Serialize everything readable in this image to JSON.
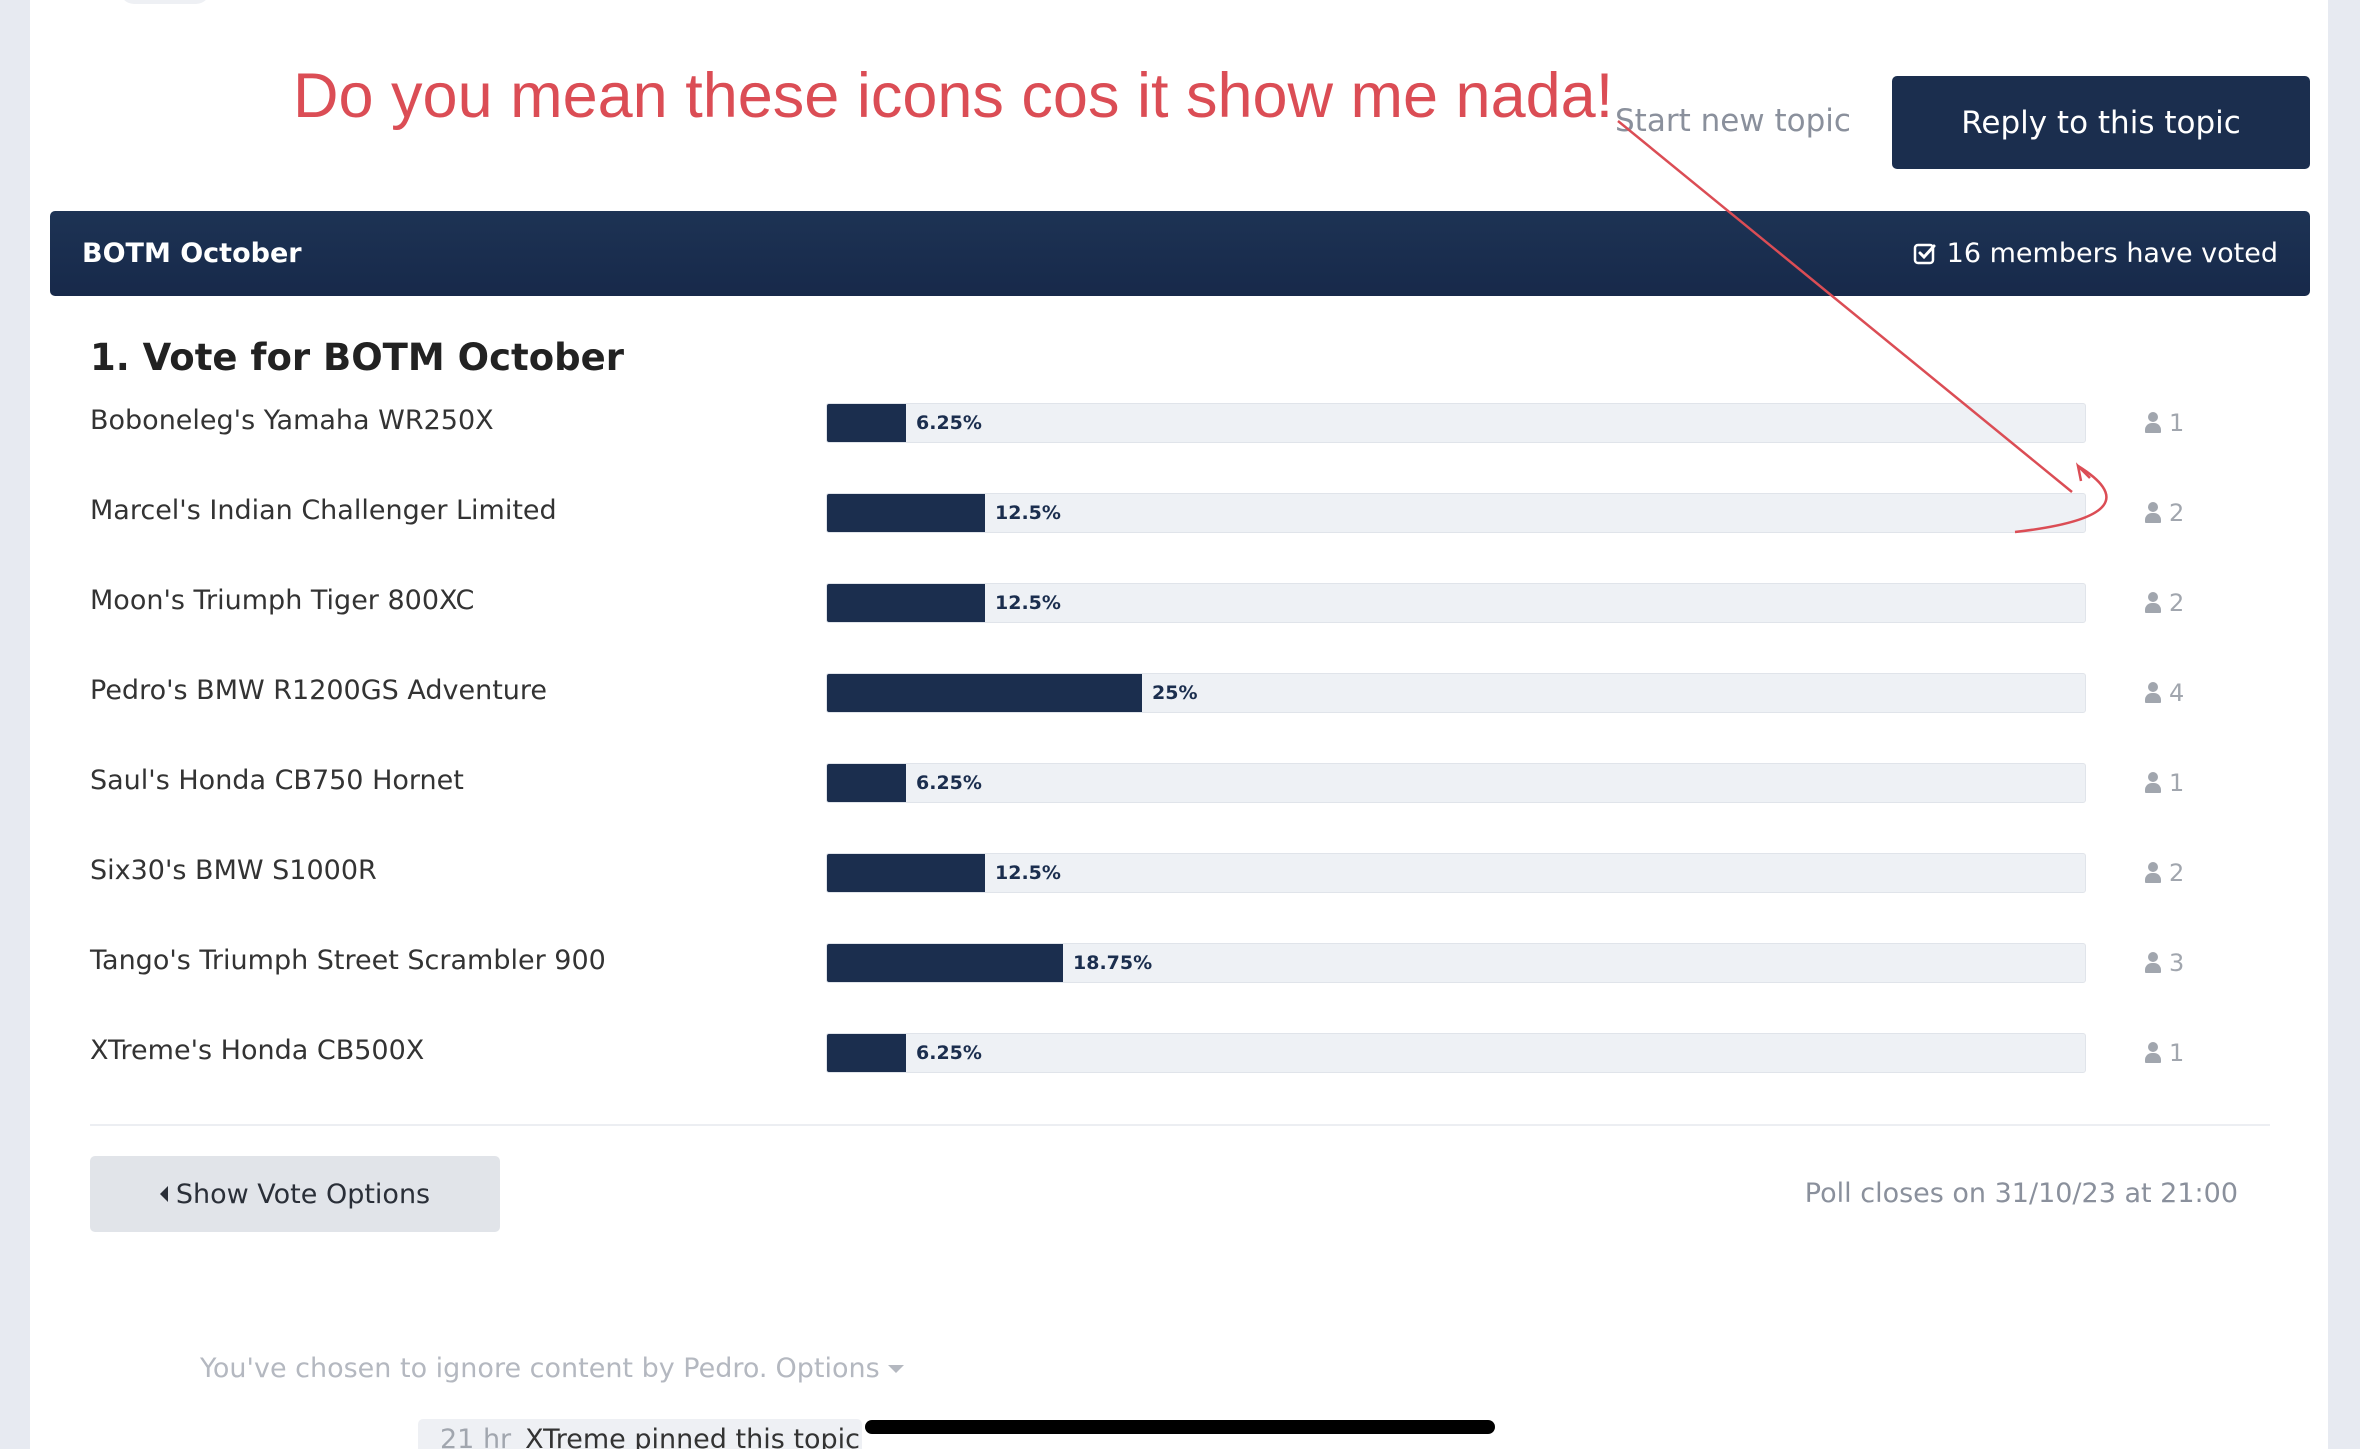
{
  "annotation": {
    "text": "Do you mean these icons cos it show me nada!",
    "color": "#db4d55"
  },
  "topbar": {
    "start_topic_label": "Start new topic",
    "reply_label": "Reply to this topic"
  },
  "poll": {
    "title": "BOTM October",
    "voted_icon": "check-square-icon",
    "voted_text": "16 members have voted",
    "question": "1. Vote for BOTM October",
    "options": [
      {
        "label": "Boboneleg's Yamaha WR250X",
        "percent_label": "6.25%",
        "percent": 6.25,
        "votes": "1"
      },
      {
        "label": "Marcel's Indian Challenger Limited",
        "percent_label": "12.5%",
        "percent": 12.5,
        "votes": "2"
      },
      {
        "label": "Moon's Triumph Tiger 800XC",
        "percent_label": "12.5%",
        "percent": 12.5,
        "votes": "2"
      },
      {
        "label": "Pedro's BMW R1200GS Adventure",
        "percent_label": "25%",
        "percent": 25,
        "votes": "4"
      },
      {
        "label": "Saul's Honda CB750 Hornet",
        "percent_label": "6.25%",
        "percent": 6.25,
        "votes": "1"
      },
      {
        "label": "Six30's BMW S1000R",
        "percent_label": "12.5%",
        "percent": 12.5,
        "votes": "2"
      },
      {
        "label": "Tango's Triumph Street Scrambler 900",
        "percent_label": "18.75%",
        "percent": 18.75,
        "votes": "3"
      },
      {
        "label": "XTreme's Honda CB500X",
        "percent_label": "6.25%",
        "percent": 6.25,
        "votes": "1"
      }
    ],
    "show_options_label": "Show Vote Options",
    "closes_text": "Poll closes on 31/10/23 at 21:00"
  },
  "footer": {
    "ignore_text": "You've chosen to ignore content by Pedro.",
    "ignore_options_label": "Options",
    "pinned_time": "21 hr",
    "pinned_text": "XTreme pinned this topic"
  },
  "colors": {
    "primary": "#1b2e4e",
    "track": "#eef1f5",
    "muted": "#8a909c"
  }
}
